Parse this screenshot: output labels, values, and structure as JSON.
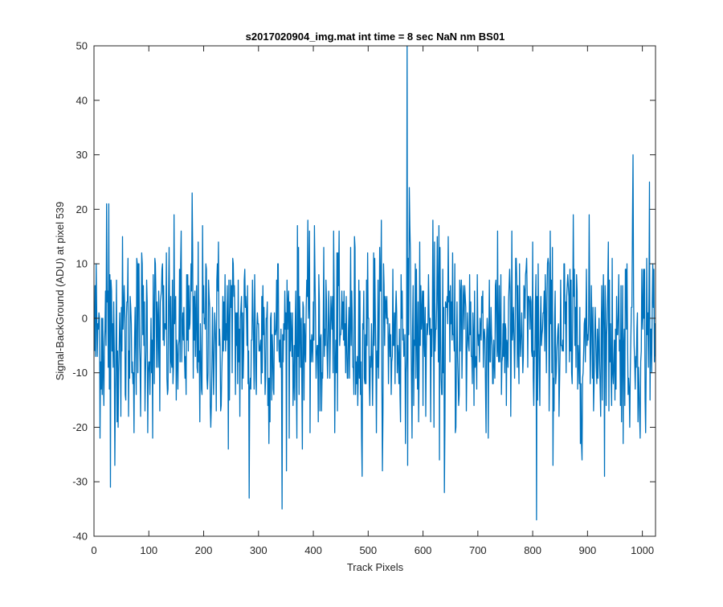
{
  "chart_data": {
    "type": "line",
    "title": "s2017020904_img.mat int time = 8 sec  NaN nm BS01",
    "xlabel": "Track Pixels",
    "ylabel": "Signal-BackGround (ADU) at pixel 539",
    "xlim": [
      0,
      1024
    ],
    "ylim": [
      -40,
      50
    ],
    "xticks": [
      0,
      100,
      200,
      300,
      400,
      500,
      600,
      700,
      800,
      900,
      1000
    ],
    "yticks": [
      -40,
      -30,
      -20,
      -10,
      0,
      10,
      20,
      30,
      40,
      50
    ],
    "grid": false,
    "box": true,
    "series": [
      {
        "color": "#0072BD",
        "n_points": 1024,
        "noise_mean": -3,
        "noise_std": 9,
        "notable_points": [
          {
            "x": 22,
            "y": 21
          },
          {
            "x": 26,
            "y": 21
          },
          {
            "x": 29,
            "y": -31
          },
          {
            "x": 178,
            "y": 23
          },
          {
            "x": 282,
            "y": -33
          },
          {
            "x": 342,
            "y": -35
          },
          {
            "x": 570,
            "y": 50
          },
          {
            "x": 574,
            "y": 24
          },
          {
            "x": 638,
            "y": -32
          },
          {
            "x": 806,
            "y": -37
          },
          {
            "x": 982,
            "y": 30
          },
          {
            "x": 1012,
            "y": 25
          }
        ]
      }
    ]
  }
}
